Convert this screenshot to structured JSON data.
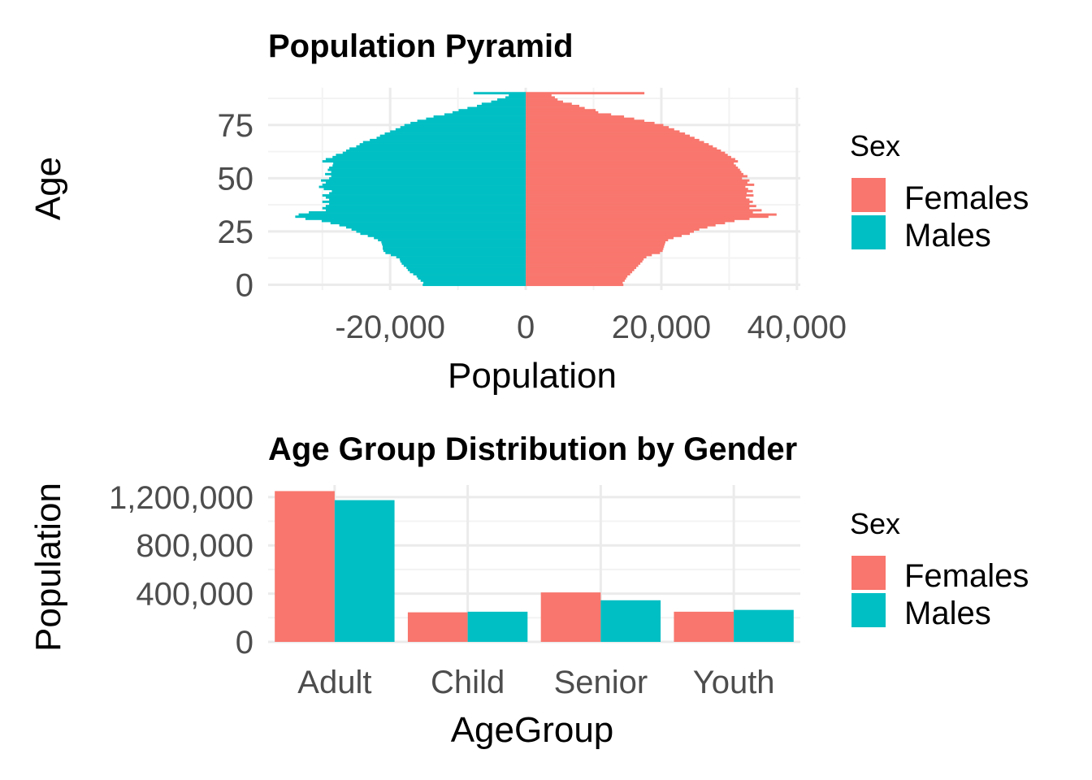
{
  "chart_data": [
    {
      "type": "bar",
      "orientation": "horizontal",
      "title": "Population Pyramid",
      "xlabel": "Population",
      "ylabel": "Age",
      "x_ticks": [
        "-20,000",
        "0",
        "20,000",
        "40,000"
      ],
      "x_tick_values": [
        -20000,
        0,
        20000,
        40000
      ],
      "y_ticks": [
        "0",
        "25",
        "50",
        "75"
      ],
      "y_tick_values": [
        0,
        25,
        50,
        75
      ],
      "xlim": [
        -38000,
        40500
      ],
      "ylim": [
        -2.5,
        92.5
      ],
      "grid": true,
      "legend": {
        "title": "Sex",
        "position": "right",
        "entries": [
          "Females",
          "Males"
        ]
      },
      "colors": {
        "Females": "#F8766D",
        "Males": "#00BFC4"
      },
      "age_step": 1,
      "age_start": 0,
      "series": [
        {
          "name": "Females",
          "values": [
            14400,
            14300,
            14600,
            14800,
            15000,
            15400,
            15700,
            16000,
            16300,
            16600,
            16900,
            17200,
            17400,
            17800,
            18600,
            19800,
            20200,
            20300,
            20400,
            20500,
            20600,
            21000,
            21800,
            23000,
            24200,
            24800,
            25600,
            26800,
            28000,
            29400,
            30800,
            33000,
            35800,
            37000,
            33500,
            34800,
            33000,
            34000,
            33000,
            33500,
            33000,
            32500,
            33600,
            32600,
            33500,
            32800,
            32400,
            33700,
            32700,
            33000,
            31900,
            32700,
            32100,
            31800,
            31600,
            31300,
            31000,
            30700,
            31300,
            30900,
            30300,
            29800,
            29400,
            28800,
            28200,
            27600,
            27000,
            26300,
            25600,
            24900,
            24200,
            23500,
            22700,
            21900,
            21100,
            20300,
            19000,
            17500,
            16000,
            14500,
            12600,
            10700,
            10300,
            8700,
            7900,
            6800,
            5500,
            4700,
            4300,
            3800,
            17500
          ]
        },
        {
          "name": "Males",
          "values": [
            -15200,
            -15100,
            -15500,
            -15900,
            -16100,
            -16600,
            -17100,
            -17400,
            -17600,
            -18000,
            -18300,
            -18500,
            -18600,
            -19100,
            -19900,
            -20700,
            -21000,
            -21100,
            -21100,
            -21200,
            -21300,
            -21800,
            -22400,
            -23300,
            -24400,
            -25000,
            -25700,
            -26500,
            -27500,
            -28800,
            -30100,
            -32500,
            -34000,
            -33500,
            -32000,
            -29500,
            -30000,
            -29500,
            -29000,
            -30000,
            -29000,
            -29500,
            -30000,
            -29000,
            -28600,
            -29800,
            -30500,
            -30000,
            -29500,
            -30200,
            -29000,
            -28700,
            -29600,
            -28700,
            -29200,
            -29000,
            -28500,
            -28400,
            -30000,
            -29500,
            -28500,
            -28000,
            -27000,
            -26500,
            -26000,
            -25000,
            -24500,
            -24000,
            -23000,
            -22000,
            -21500,
            -20800,
            -20000,
            -19200,
            -18500,
            -17900,
            -17000,
            -16000,
            -14700,
            -13600,
            -12000,
            -10800,
            -9900,
            -8600,
            -7200,
            -6500,
            -5100,
            -4200,
            -3000,
            -2500,
            -7700
          ]
        }
      ]
    },
    {
      "type": "bar",
      "title": "Age Group Distribution by Gender",
      "xlabel": "AgeGroup",
      "ylabel": "Population",
      "categories": [
        "Adult",
        "Child",
        "Senior",
        "Youth"
      ],
      "y_ticks": [
        "0",
        "400,000",
        "800,000",
        "1,200,000"
      ],
      "y_tick_values": [
        0,
        400000,
        800000,
        1200000
      ],
      "ylim": [
        0,
        1300000
      ],
      "grid": true,
      "legend": {
        "title": "Sex",
        "position": "right",
        "entries": [
          "Females",
          "Males"
        ]
      },
      "colors": {
        "Females": "#F8766D",
        "Males": "#00BFC4"
      },
      "series": [
        {
          "name": "Females",
          "values": [
            1250000,
            245000,
            410000,
            250000
          ]
        },
        {
          "name": "Males",
          "values": [
            1175000,
            250000,
            345000,
            265000
          ]
        }
      ]
    }
  ]
}
